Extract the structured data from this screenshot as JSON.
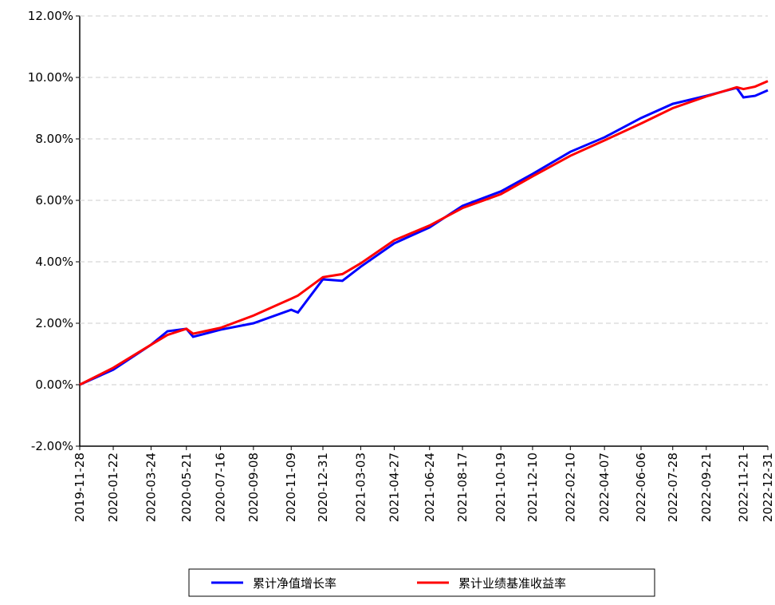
{
  "chart_data": {
    "type": "line",
    "x": [
      "2019-11-28",
      "2020-01-22",
      "2020-03-24",
      "2020-04-20",
      "2020-05-21",
      "2020-06-01",
      "2020-07-16",
      "2020-09-08",
      "2020-11-09",
      "2020-11-20",
      "2020-12-31",
      "2021-02-01",
      "2021-03-03",
      "2021-04-27",
      "2021-06-24",
      "2021-08-17",
      "2021-10-19",
      "2021-12-10",
      "2022-02-10",
      "2022-04-07",
      "2022-06-06",
      "2022-07-28",
      "2022-09-21",
      "2022-11-10",
      "2022-11-21",
      "2022-12-10",
      "2022-12-31"
    ],
    "series": [
      {
        "name": "累计净值增长率",
        "color": "#0000ff",
        "values": [
          0,
          0.49,
          1.3,
          1.74,
          1.82,
          1.56,
          1.79,
          2.0,
          2.44,
          2.35,
          3.43,
          3.38,
          3.84,
          4.6,
          5.12,
          5.82,
          6.29,
          6.86,
          7.58,
          8.05,
          8.68,
          9.14,
          9.4,
          9.66,
          9.35,
          9.4,
          9.58
        ]
      },
      {
        "name": "累计业绩基准收益率",
        "color": "#ff0000",
        "values": [
          0,
          0.55,
          1.3,
          1.62,
          1.82,
          1.66,
          1.85,
          2.25,
          2.8,
          2.9,
          3.5,
          3.6,
          3.95,
          4.7,
          5.18,
          5.75,
          6.2,
          6.78,
          7.45,
          7.95,
          8.5,
          9.0,
          9.38,
          9.68,
          9.62,
          9.7,
          9.88
        ]
      }
    ],
    "xlim": [
      "2019-11-28",
      "2022-12-31"
    ],
    "xticks": [
      "2019-11-28",
      "2020-01-22",
      "2020-03-24",
      "2020-05-21",
      "2020-07-16",
      "2020-09-08",
      "2020-11-09",
      "2020-12-31",
      "2021-03-03",
      "2021-04-27",
      "2021-06-24",
      "2021-08-17",
      "2021-10-19",
      "2021-12-10",
      "2022-02-10",
      "2022-04-07",
      "2022-06-06",
      "2022-07-28",
      "2022-09-21",
      "2022-11-21",
      "2022-12-31"
    ],
    "ylim": [
      -2,
      12
    ],
    "yticks": [
      {
        "value": -2,
        "label": "-2.00%"
      },
      {
        "value": 0,
        "label": "0.00%"
      },
      {
        "value": 2,
        "label": "2.00%"
      },
      {
        "value": 4,
        "label": "4.00%"
      },
      {
        "value": 6,
        "label": "6.00%"
      },
      {
        "value": 8,
        "label": "8.00%"
      },
      {
        "value": 10,
        "label": "10.00%"
      },
      {
        "value": 12,
        "label": "12.00%"
      }
    ],
    "grid": true,
    "legend": "bottom"
  }
}
